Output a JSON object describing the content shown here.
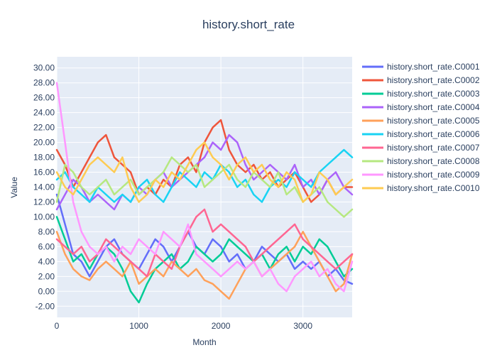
{
  "chart_data": {
    "type": "line",
    "title": "history.short_rate",
    "xlabel": "Month",
    "ylabel": "Value",
    "xlim": [
      0,
      3600
    ],
    "ylim": [
      -3.5,
      31.5
    ],
    "x_ticks": [
      0,
      1000,
      2000,
      3000
    ],
    "x_tick_labels": [
      "0",
      "1000",
      "2000",
      "3000"
    ],
    "y_ticks": [
      -2,
      0,
      2,
      4,
      6,
      8,
      10,
      12,
      14,
      16,
      18,
      20,
      22,
      24,
      26,
      28,
      30
    ],
    "y_tick_labels": [
      "-2.00",
      "0.00",
      "2.00",
      "4.00",
      "6.00",
      "8.00",
      "10.00",
      "12.00",
      "14.00",
      "16.00",
      "18.00",
      "20.00",
      "22.00",
      "24.00",
      "26.00",
      "28.00",
      "30.00"
    ],
    "grid": true,
    "legend_position": "right",
    "background": "#e5ecf6",
    "x": [
      0,
      100,
      200,
      300,
      400,
      500,
      600,
      700,
      800,
      900,
      1000,
      1100,
      1200,
      1300,
      1400,
      1500,
      1600,
      1700,
      1800,
      1900,
      2000,
      2100,
      2200,
      2300,
      2400,
      2500,
      2600,
      2700,
      2800,
      2900,
      3000,
      3100,
      3200,
      3300,
      3400,
      3500,
      3600
    ],
    "series": [
      {
        "name": "history.short_rate.C0001",
        "color": "#636efa",
        "values": [
          13,
          9,
          5,
          4,
          2,
          4,
          6,
          7,
          5,
          4,
          3,
          5,
          7,
          6,
          4,
          6,
          8,
          6,
          5,
          7,
          6,
          4,
          5,
          3,
          4,
          6,
          5,
          4,
          5,
          3,
          4,
          3,
          4,
          2,
          3,
          1.5,
          1
        ]
      },
      {
        "name": "history.short_rate.C0002",
        "color": "#EF553B",
        "values": [
          19,
          17,
          14,
          16,
          18,
          20,
          21,
          18,
          17,
          16,
          13,
          14,
          13,
          15,
          14,
          17,
          18,
          16,
          20,
          22,
          23,
          19,
          17,
          16,
          17,
          15,
          16,
          14,
          15,
          16,
          14,
          12,
          13,
          15,
          13,
          14,
          14
        ]
      },
      {
        "name": "history.short_rate.C0003",
        "color": "#00cc96",
        "values": [
          10,
          7,
          4,
          5,
          3,
          5,
          6,
          5,
          3,
          0,
          -1.5,
          1,
          3,
          4,
          5,
          3,
          4,
          6,
          5,
          4,
          5,
          7,
          6,
          5,
          4,
          5,
          3,
          5,
          6,
          4,
          6,
          5,
          7,
          6,
          4,
          2,
          3
        ]
      },
      {
        "name": "history.short_rate.C0004",
        "color": "#ab63fa",
        "values": [
          11,
          13,
          15,
          14,
          12,
          13,
          12,
          11,
          13,
          12,
          14,
          13,
          15,
          16,
          14,
          15,
          16,
          17,
          18,
          20,
          19,
          21,
          20,
          17,
          15,
          16,
          17,
          16,
          15,
          17,
          14,
          15,
          13,
          15,
          16,
          14,
          13
        ]
      },
      {
        "name": "history.short_rate.C0005",
        "color": "#FFA15A",
        "values": [
          8,
          5,
          3,
          2,
          1.5,
          3,
          4,
          3,
          2,
          4,
          1,
          2,
          3,
          2,
          4,
          3,
          2,
          3,
          1.5,
          1,
          0,
          -1,
          1,
          3,
          4,
          2,
          3,
          4,
          5,
          6,
          8,
          6,
          4,
          2,
          0,
          1,
          5
        ]
      },
      {
        "name": "history.short_rate.C0006",
        "color": "#19d3f3",
        "values": [
          15,
          16,
          14,
          13,
          12,
          14,
          13,
          12,
          13,
          12,
          14,
          15,
          13,
          12,
          14,
          16,
          15,
          14,
          16,
          15,
          17,
          16,
          14,
          15,
          13,
          12,
          14,
          15,
          14,
          16,
          15,
          14,
          16,
          17,
          18,
          19,
          18
        ]
      },
      {
        "name": "history.short_rate.C0007",
        "color": "#FF6692",
        "values": [
          7,
          6,
          5,
          6,
          4,
          5,
          7,
          6,
          5,
          4,
          3,
          2,
          5,
          4,
          3,
          6,
          8,
          10,
          11,
          8,
          9,
          8,
          7,
          6,
          4,
          5,
          6,
          7,
          8,
          9,
          7,
          6,
          5,
          4,
          3,
          4,
          5
        ]
      },
      {
        "name": "history.short_rate.C0008",
        "color": "#B6E880",
        "values": [
          12,
          17,
          16,
          14,
          13,
          14,
          15,
          13,
          14,
          15,
          13,
          14,
          15,
          16,
          18,
          17,
          16,
          17,
          14,
          15,
          16,
          17,
          15,
          14,
          16,
          15,
          14,
          16,
          13,
          14,
          12,
          13,
          14,
          12,
          11,
          10,
          11
        ]
      },
      {
        "name": "history.short_rate.C0009",
        "color": "#FF97FF",
        "values": [
          28,
          20,
          12,
          8,
          6,
          5,
          6,
          4,
          6,
          5,
          7,
          6,
          5,
          8,
          7,
          6,
          9,
          5,
          4,
          3,
          2,
          3,
          4,
          3,
          4,
          2,
          3,
          1,
          0,
          2,
          3,
          4,
          2,
          3,
          1,
          0,
          4
        ]
      },
      {
        "name": "history.short_rate.C0010",
        "color": "#FECB52",
        "values": [
          16,
          14,
          13,
          15,
          17,
          18,
          17,
          16,
          18,
          14,
          12,
          13,
          15,
          14,
          16,
          15,
          17,
          19,
          20,
          18,
          17,
          15,
          17,
          18,
          16,
          17,
          15,
          14,
          16,
          15,
          12,
          13,
          16,
          15,
          13,
          14,
          15
        ]
      }
    ]
  }
}
